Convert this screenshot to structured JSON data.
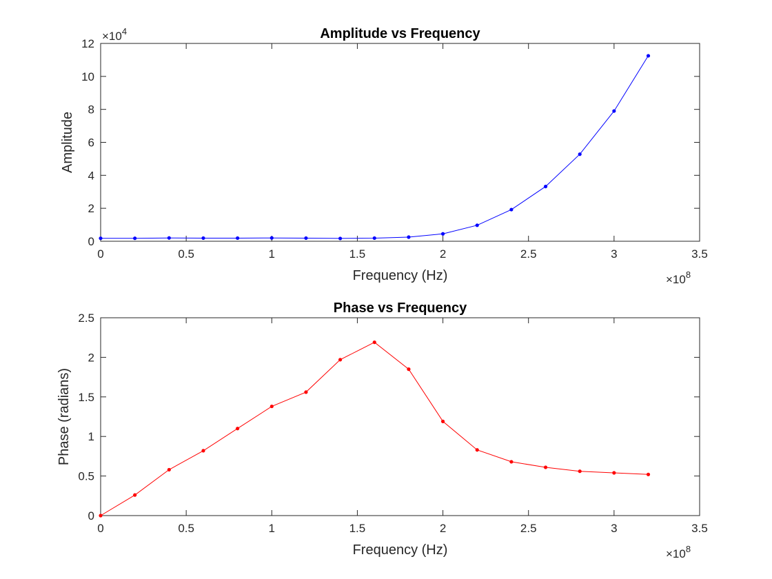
{
  "colors": {
    "amplitude_series": "#0000ff",
    "phase_series": "#ff0000",
    "axis": "#262626",
    "background": "#ffffff"
  },
  "chart_data": [
    {
      "type": "line",
      "title": "Amplitude vs Frequency",
      "xlabel": "Frequency (Hz)",
      "ylabel": "Amplitude",
      "x_multiplier_label": "×10",
      "x_multiplier_exp": "8",
      "y_multiplier_label": "×10",
      "y_multiplier_exp": "4",
      "xlim": [
        0,
        3.5
      ],
      "ylim": [
        0,
        12
      ],
      "x_ticks": [
        "0",
        "0.5",
        "1",
        "1.5",
        "2",
        "2.5",
        "3",
        "3.5"
      ],
      "y_ticks": [
        "0",
        "2",
        "4",
        "6",
        "8",
        "10",
        "12"
      ],
      "x_tick_values": [
        0,
        0.5,
        1,
        1.5,
        2,
        2.5,
        3,
        3.5
      ],
      "y_tick_values": [
        0,
        2,
        4,
        6,
        8,
        10,
        12
      ],
      "grid": false,
      "series": [
        {
          "color": "#0000ff",
          "marker": "dot",
          "x": [
            0,
            0.2,
            0.4,
            0.6,
            0.8,
            1.0,
            1.2,
            1.4,
            1.6,
            1.8,
            2.0,
            2.2,
            2.4,
            2.6,
            2.8,
            3.0,
            3.2
          ],
          "y": [
            0.18,
            0.18,
            0.2,
            0.19,
            0.19,
            0.2,
            0.19,
            0.17,
            0.19,
            0.25,
            0.45,
            0.97,
            1.92,
            3.32,
            5.28,
            7.9,
            11.25
          ]
        }
      ]
    },
    {
      "type": "line",
      "title": "Phase vs Frequency",
      "xlabel": "Frequency (Hz)",
      "ylabel": "Phase (radians)",
      "x_multiplier_label": "×10",
      "x_multiplier_exp": "8",
      "xlim": [
        0,
        3.5
      ],
      "ylim": [
        0,
        2.5
      ],
      "x_ticks": [
        "0",
        "0.5",
        "1",
        "1.5",
        "2",
        "2.5",
        "3",
        "3.5"
      ],
      "y_ticks": [
        "0",
        "0.5",
        "1",
        "1.5",
        "2",
        "2.5"
      ],
      "x_tick_values": [
        0,
        0.5,
        1,
        1.5,
        2,
        2.5,
        3,
        3.5
      ],
      "y_tick_values": [
        0,
        0.5,
        1,
        1.5,
        2,
        2.5
      ],
      "grid": false,
      "series": [
        {
          "color": "#ff0000",
          "marker": "dot",
          "x": [
            0,
            0.2,
            0.4,
            0.6,
            0.8,
            1.0,
            1.2,
            1.4,
            1.6,
            1.8,
            2.0,
            2.2,
            2.4,
            2.6,
            2.8,
            3.0,
            3.2
          ],
          "y": [
            0.0,
            0.26,
            0.58,
            0.82,
            1.1,
            1.38,
            1.56,
            1.97,
            2.19,
            1.85,
            1.19,
            0.83,
            0.68,
            0.61,
            0.56,
            0.54,
            0.52
          ]
        }
      ]
    }
  ]
}
